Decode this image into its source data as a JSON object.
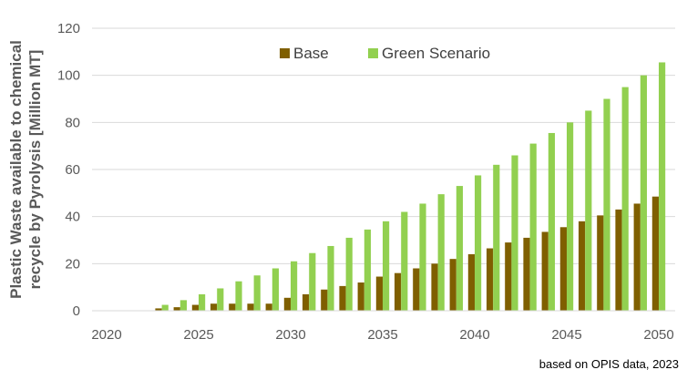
{
  "chart_data": {
    "type": "bar",
    "title": "",
    "xlabel": "",
    "ylabel_lines": [
      "Plastic Waste available to chemical",
      "recycle by Pyrolysis [Million MT]"
    ],
    "ylim": [
      0,
      120
    ],
    "yticks": [
      0,
      20,
      40,
      60,
      80,
      100,
      120
    ],
    "xticks": [
      2020,
      2025,
      2030,
      2035,
      2040,
      2045,
      2050
    ],
    "x": [
      2020,
      2021,
      2022,
      2023,
      2024,
      2025,
      2026,
      2027,
      2028,
      2029,
      2030,
      2031,
      2032,
      2033,
      2034,
      2035,
      2036,
      2037,
      2038,
      2039,
      2040,
      2041,
      2042,
      2043,
      2044,
      2045,
      2046,
      2047,
      2048,
      2049,
      2050
    ],
    "grid": "horizontal",
    "legend_position": "top",
    "series": [
      {
        "name": "Base",
        "color": "#7f5f00",
        "values": [
          0,
          0,
          0,
          1,
          1.5,
          2.5,
          3,
          3,
          3,
          3,
          5.5,
          7,
          9,
          10.5,
          12,
          14.5,
          16,
          18,
          20,
          22,
          24,
          26.5,
          29,
          31,
          33.5,
          35.5,
          38,
          40.5,
          43,
          45.5,
          48.5
        ]
      },
      {
        "name": "Green Scenario",
        "color": "#92d050",
        "values": [
          0,
          0,
          0,
          2.5,
          4.5,
          7,
          9.5,
          12.5,
          15,
          18,
          21,
          24.5,
          27.5,
          31,
          34.5,
          38,
          42,
          45.5,
          49.5,
          53,
          57.5,
          62,
          66,
          71,
          75.5,
          80,
          85,
          90,
          95,
          100,
          105.5
        ]
      }
    ],
    "note": "based on OPIS data, 2023"
  }
}
